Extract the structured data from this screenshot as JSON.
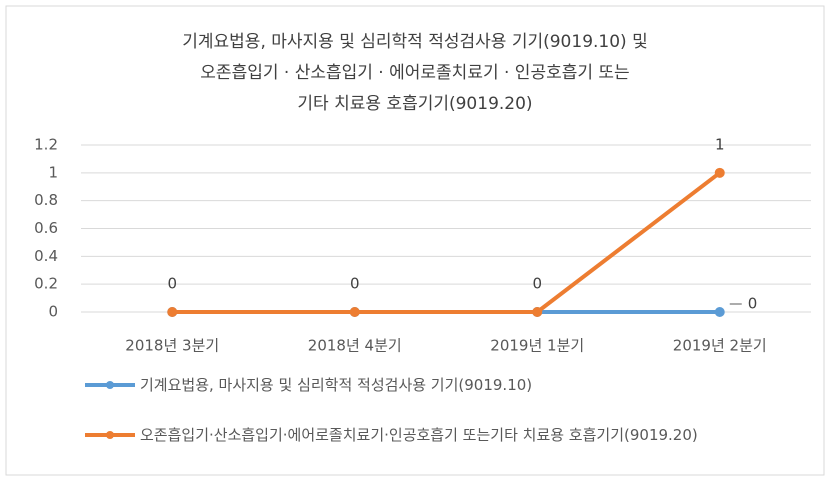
{
  "chart_data": {
    "type": "line",
    "title": [
      "기계요법용, 마사지용 및 심리학적 적성검사용 기기(9019.10) 및",
      "오존흡입기 · 산소흡입기 · 에어로졸치료기 · 인공호흡기 또는",
      "기타 치료용 호흡기기(9019.20)"
    ],
    "categories": [
      "2018년 3분기",
      "2018년 4분기",
      "2019년 1분기",
      "2019년 2분기"
    ],
    "series": [
      {
        "name": "기계요법용, 마사지용 및 심리학적 적성검사용 기기(9019.10)",
        "color": "#5b9bd5",
        "values": [
          0,
          0,
          0,
          0
        ],
        "labels": "last"
      },
      {
        "name": "오존흡입기·산소흡입기·에어로졸치료기·인공호흡기 또는기타 치료용 호흡기기(9019.20)",
        "color": "#ed7d31",
        "values": [
          0,
          0,
          0,
          1
        ],
        "labels": "all"
      }
    ],
    "ylim": [
      0,
      1.2
    ],
    "yticks": [
      0,
      0.2,
      0.4,
      0.6,
      0.8,
      1,
      1.2
    ],
    "grid": true,
    "legend": "bottom"
  }
}
